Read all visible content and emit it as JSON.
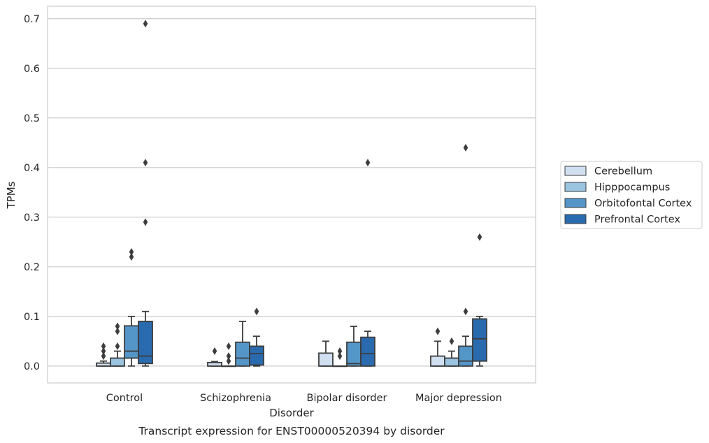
{
  "chart_data": {
    "type": "box",
    "title": "Transcript expression for ENST00000520394 by disorder",
    "xlabel": "Disorder",
    "ylabel": "TPMs",
    "ylim": [
      -0.034,
      0.725
    ],
    "yticks": [
      0.0,
      0.1,
      0.2,
      0.3,
      0.4,
      0.5,
      0.6,
      0.7
    ],
    "ytick_labels": [
      "0.0",
      "0.1",
      "0.2",
      "0.3",
      "0.4",
      "0.5",
      "0.6",
      "0.7"
    ],
    "grid": "horizontal",
    "legend_placement": "outside-right",
    "categories": [
      "Control",
      "Schizophrenia",
      "Bipolar disorder",
      "Major depression"
    ],
    "series": [
      {
        "name": "Cerebellum",
        "color": "#d0e0f0",
        "boxes": [
          {
            "whislo": 0.0,
            "q1": 0.0,
            "med": 0.0,
            "q3": 0.006,
            "whishi": 0.01,
            "fliers": [
              0.02,
              0.03,
              0.04
            ]
          },
          {
            "whislo": 0.0,
            "q1": 0.0,
            "med": 0.0,
            "q3": 0.007,
            "whishi": 0.009,
            "fliers": [
              0.03
            ]
          },
          {
            "whislo": 0.0,
            "q1": 0.0,
            "med": 0.0,
            "q3": 0.026,
            "whishi": 0.05,
            "fliers": []
          },
          {
            "whislo": 0.0,
            "q1": 0.0,
            "med": 0.0,
            "q3": 0.02,
            "whishi": 0.05,
            "fliers": [
              0.07
            ]
          }
        ]
      },
      {
        "name": "Hipppocampus",
        "color": "#9ac4e0",
        "boxes": [
          {
            "whislo": 0.0,
            "q1": 0.0,
            "med": 0.0,
            "q3": 0.016,
            "whishi": 0.03,
            "fliers": [
              0.04,
              0.07,
              0.08
            ]
          },
          {
            "whislo": 0.0,
            "q1": 0.0,
            "med": 0.0,
            "q3": 0.0,
            "whishi": 0.0,
            "fliers": [
              0.01,
              0.02,
              0.04
            ]
          },
          {
            "whislo": 0.0,
            "q1": 0.0,
            "med": 0.0,
            "q3": 0.0,
            "whishi": 0.0,
            "fliers": [
              0.02,
              0.03
            ]
          },
          {
            "whislo": 0.0,
            "q1": 0.0,
            "med": 0.0,
            "q3": 0.016,
            "whishi": 0.03,
            "fliers": [
              0.05
            ]
          }
        ]
      },
      {
        "name": "Orbitofontal Cortex",
        "color": "#5596c8",
        "boxes": [
          {
            "whislo": 0.0,
            "q1": 0.016,
            "med": 0.03,
            "q3": 0.081,
            "whishi": 0.1,
            "fliers": [
              0.22,
              0.23
            ]
          },
          {
            "whislo": 0.0,
            "q1": 0.0,
            "med": 0.016,
            "q3": 0.048,
            "whishi": 0.09,
            "fliers": []
          },
          {
            "whislo": 0.0,
            "q1": 0.0,
            "med": 0.005,
            "q3": 0.048,
            "whishi": 0.08,
            "fliers": []
          },
          {
            "whislo": 0.0,
            "q1": 0.0,
            "med": 0.01,
            "q3": 0.04,
            "whishi": 0.06,
            "fliers": [
              0.11,
              0.44
            ]
          }
        ]
      },
      {
        "name": "Prefrontal Cortex",
        "color": "#2a6aae",
        "boxes": [
          {
            "whislo": 0.0,
            "q1": 0.005,
            "med": 0.02,
            "q3": 0.09,
            "whishi": 0.11,
            "fliers": [
              0.29,
              0.41,
              0.69
            ]
          },
          {
            "whislo": 0.0,
            "q1": 0.002,
            "med": 0.025,
            "q3": 0.04,
            "whishi": 0.06,
            "fliers": [
              0.11
            ]
          },
          {
            "whislo": 0.0,
            "q1": 0.0,
            "med": 0.025,
            "q3": 0.058,
            "whishi": 0.07,
            "fliers": [
              0.41
            ]
          },
          {
            "whislo": 0.0,
            "q1": 0.01,
            "med": 0.055,
            "q3": 0.095,
            "whishi": 0.1,
            "fliers": [
              0.26
            ]
          }
        ]
      }
    ]
  }
}
